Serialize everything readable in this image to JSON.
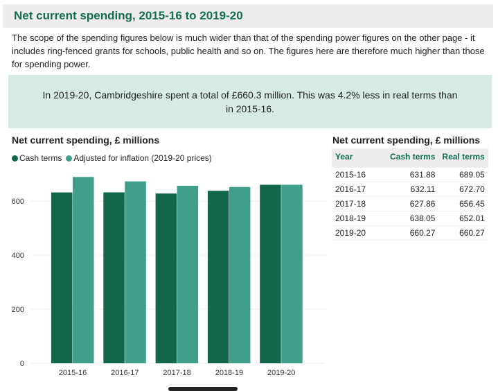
{
  "header": {
    "title": "Net current spending, 2015-16 to 2019-20"
  },
  "intro": "The scope of the spending figures below is much wider than that of the spending power figures on the other page - it includes ring-fenced grants for schools, public health and so on. The figures here are therefore much higher than those for spending power.",
  "callout": "In 2019-20, Cambridgeshire spent a total of £660.3 million. This was 4.2% less in real terms than in 2015-16.",
  "chart_data": {
    "type": "bar",
    "title": "Net current spending, £ millions",
    "categories": [
      "2015-16",
      "2016-17",
      "2017-18",
      "2018-19",
      "2019-20"
    ],
    "series": [
      {
        "name": "Cash terms",
        "color": "#12664a",
        "values": [
          631.88,
          632.11,
          627.86,
          638.05,
          660.27
        ]
      },
      {
        "name": "Adjusted for inflation (2019-20 prices)",
        "color": "#419e8a",
        "values": [
          689.05,
          672.7,
          656.45,
          652.01,
          660.27
        ]
      }
    ],
    "yticks": [
      "0",
      "200",
      "400",
      "600"
    ],
    "ylim": [
      0,
      700
    ],
    "legend": "top-left",
    "grid": true
  },
  "table": {
    "title": "Net current spending, £ millions",
    "headers": [
      "Year",
      "Cash terms",
      "Real terms"
    ],
    "rows": [
      [
        "2015-16",
        "631.88",
        "689.05"
      ],
      [
        "2016-17",
        "632.11",
        "672.70"
      ],
      [
        "2017-18",
        "627.86",
        "656.45"
      ],
      [
        "2018-19",
        "638.05",
        "652.01"
      ],
      [
        "2019-20",
        "660.27",
        "660.27"
      ]
    ]
  }
}
